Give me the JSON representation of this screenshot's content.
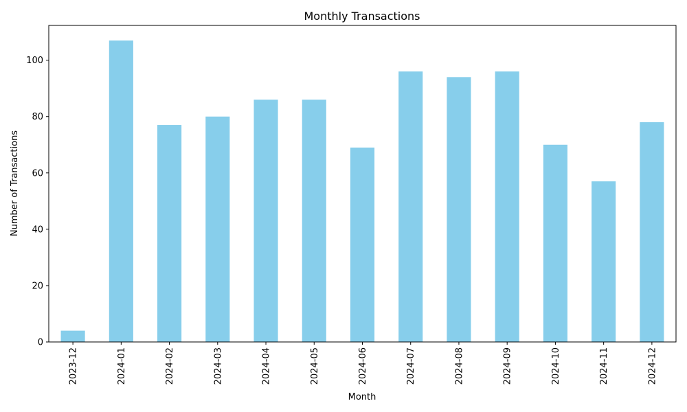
{
  "chart_data": {
    "type": "bar",
    "title": "Monthly Transactions",
    "xlabel": "Month",
    "ylabel": "Number of Transactions",
    "categories": [
      "2023-12",
      "2024-01",
      "2024-02",
      "2024-03",
      "2024-04",
      "2024-05",
      "2024-06",
      "2024-07",
      "2024-08",
      "2024-09",
      "2024-10",
      "2024-11",
      "2024-12"
    ],
    "values": [
      4,
      107,
      77,
      80,
      86,
      86,
      69,
      96,
      94,
      96,
      70,
      57,
      78
    ],
    "ylim": [
      0,
      112.35
    ],
    "yticks": [
      0,
      20,
      40,
      60,
      80,
      100
    ],
    "bar_color": "#87ceeb",
    "grid": false,
    "legend": "none"
  }
}
